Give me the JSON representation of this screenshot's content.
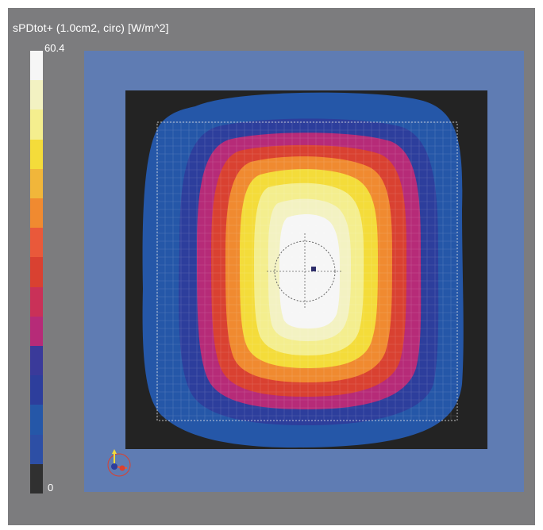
{
  "colorbar": {
    "title": "sPDtot+ (1.0cm2, circ) [W/m^2]",
    "max_label": "60.4",
    "min_label": "0",
    "levels": [
      "#f6f6f6",
      "#f3f2c2",
      "#f4ee8e",
      "#f4dc3a",
      "#f1b63a",
      "#f08a30",
      "#e9593a",
      "#d94131",
      "#c93158",
      "#b62b78",
      "#3a3a9a",
      "#2d3e9c",
      "#2557a8",
      "#2d4fa5",
      "#303030"
    ]
  },
  "colors": {
    "background": "#7c7c7e",
    "outer_region": "#5f7cb3",
    "dark_region": "#232323"
  },
  "icons": {
    "axis_triad": "xyz-axis-triad-icon"
  }
}
